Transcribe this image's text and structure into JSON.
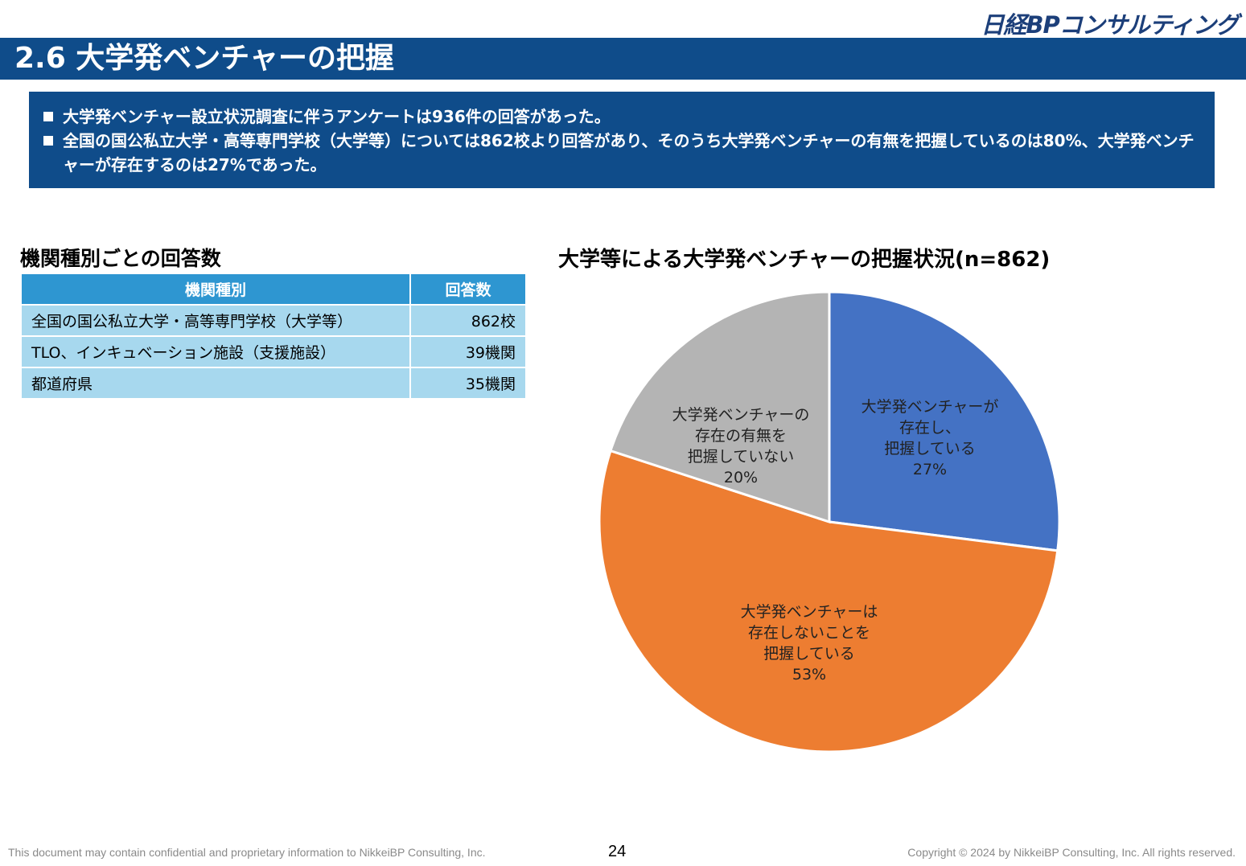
{
  "header": {
    "logo": "日経BPコンサルティング",
    "title": "2.6 大学発ベンチャーの把握"
  },
  "summary": {
    "items": [
      "大学発ベンチャー設立状況調査に伴うアンケートは936件の回答があった。",
      "全国の国公私立大学・高等専門学校（大学等）については862校より回答があり、そのうち大学発ベンチャーの有無を把握しているのは80%、大学発ベンチャーが存在するのは27%であった。"
    ]
  },
  "table": {
    "title": "機関種別ごとの回答数",
    "headers": [
      "機関種別",
      "回答数"
    ],
    "rows": [
      {
        "type": "全国の国公私立大学・高等専門学校（大学等）",
        "count": "862校"
      },
      {
        "type": "TLO、インキュベーション施設（支援施設）",
        "count": "39機関"
      },
      {
        "type": "都道府県",
        "count": "35機関"
      }
    ]
  },
  "chart_data": {
    "type": "pie",
    "title": "大学等による大学発ベンチャーの把握状況(n=862)",
    "slices": [
      {
        "label_lines": [
          "大学発ベンチャーが",
          "存在し、",
          "把握している",
          "27%"
        ],
        "value": 27,
        "color": "#4472c4"
      },
      {
        "label_lines": [
          "大学発ベンチャーは",
          "存在しないことを",
          "把握している",
          "53%"
        ],
        "value": 53,
        "color": "#ed7d31"
      },
      {
        "label_lines": [
          "大学発ベンチャーの",
          "存在の有無を",
          "把握していない",
          "20%"
        ],
        "value": 20,
        "color": "#b4b4b4"
      }
    ],
    "start": "12 o'clock",
    "direction": "clockwise",
    "legend": "none"
  },
  "footer": {
    "left": "This document may contain confidential and proprietary information to NikkeiBP Consulting, Inc.",
    "page": "24",
    "right": "Copyright © 2024 by NikkeiBP Consulting, Inc. All rights reserved."
  }
}
